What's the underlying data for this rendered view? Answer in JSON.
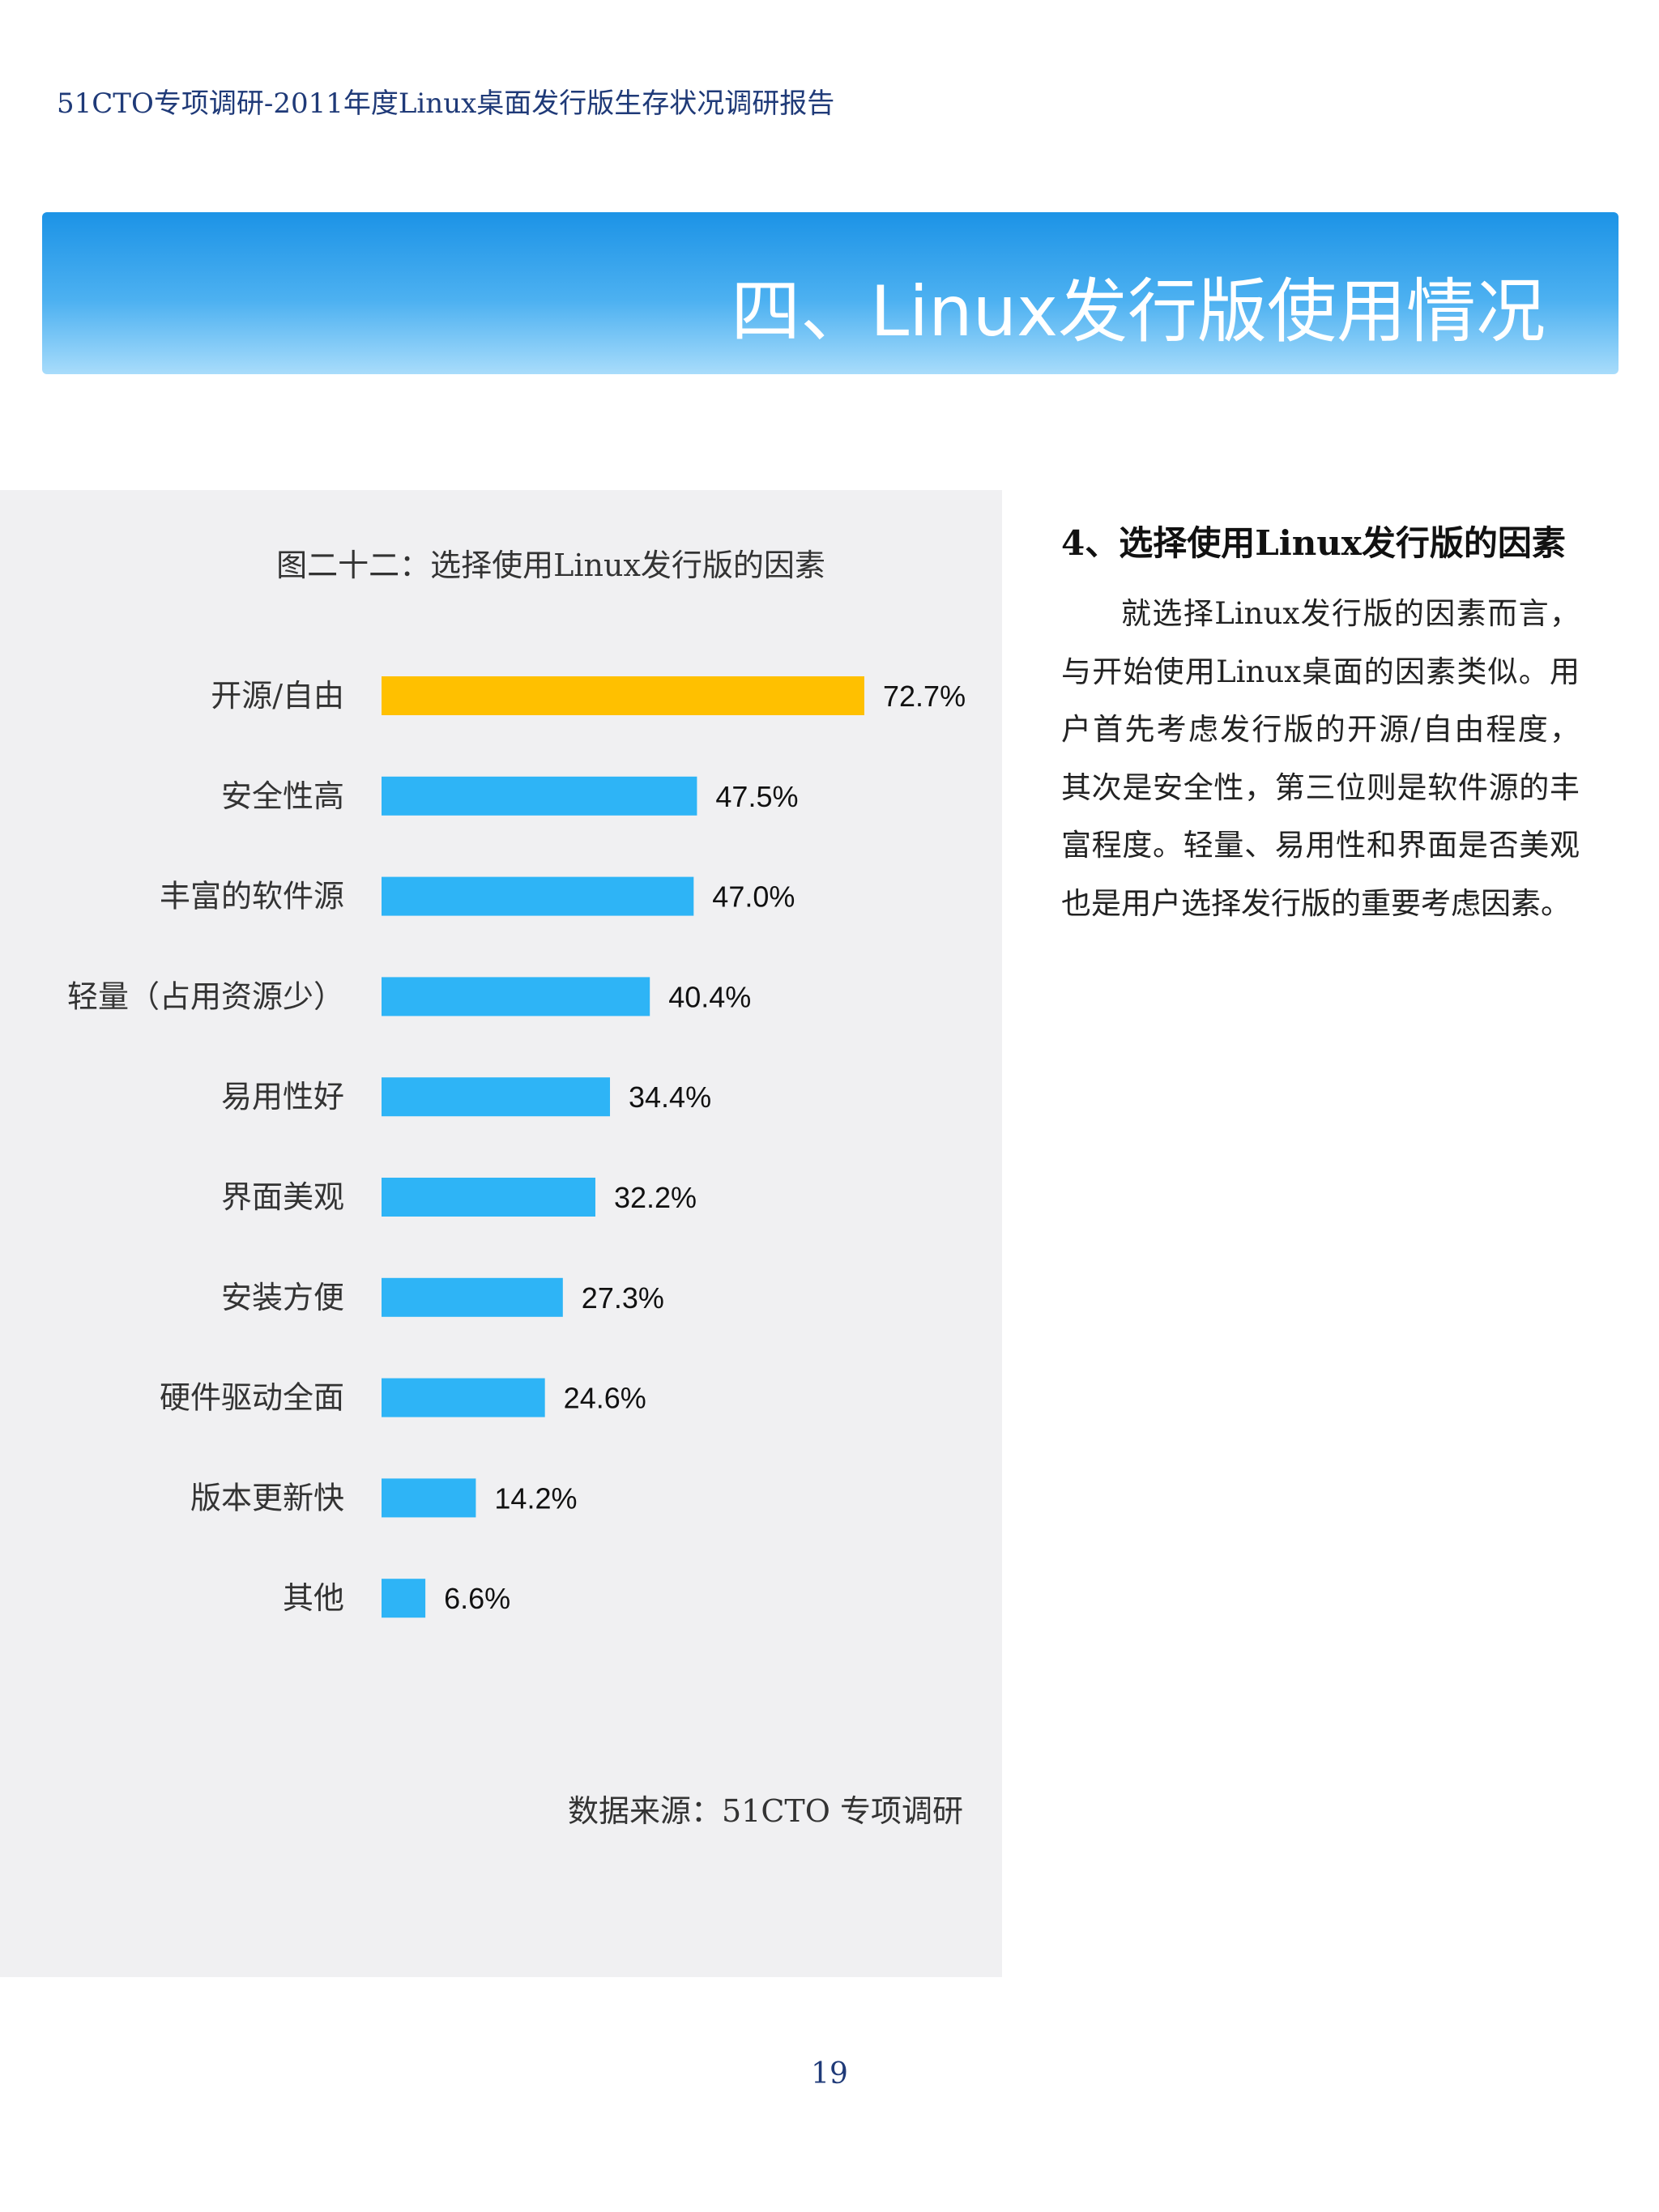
{
  "header": {
    "running_title": "51CTO专项调研-2011年度Linux桌面发行版生存状况调研报告"
  },
  "banner": {
    "title": "四、Linux发行版使用情况"
  },
  "chart_panel": {
    "title": "图二十二：选择使用Linux发行版的因素",
    "source": "数据来源：51CTO 专项调研"
  },
  "chart_data": {
    "type": "bar",
    "orientation": "horizontal",
    "title": "图二十二：选择使用Linux发行版的因素",
    "unit": "%",
    "categories": [
      "开源/自由",
      "安全性高",
      "丰富的软件源",
      "轻量（占用资源少）",
      "易用性好",
      "界面美观",
      "安装方便",
      "硬件驱动全面",
      "版本更新快",
      "其他"
    ],
    "values": [
      72.7,
      47.5,
      47.0,
      40.4,
      34.4,
      32.2,
      27.3,
      24.6,
      14.2,
      6.6
    ],
    "value_labels": [
      "72.7%",
      "47.5%",
      "47.0%",
      "40.4%",
      "34.4%",
      "32.2%",
      "27.3%",
      "24.6%",
      "14.2%",
      "6.6%"
    ],
    "highlight_color": "#ffc000",
    "bar_color": "#2eb4f6",
    "highlight_index": 0,
    "grid": false
  },
  "section": {
    "heading": "4、选择使用Linux发行版的因素",
    "body": "就选择Linux发行版的因素而言，与开始使用Linux桌面的因素类似。用户首先考虑发行版的开源/自由程度，其次是安全性，第三位则是软件源的丰富程度。轻量、易用性和界面是否美观也是用户选择发行版的重要考虑因素。"
  },
  "footer": {
    "page_number": "19"
  }
}
